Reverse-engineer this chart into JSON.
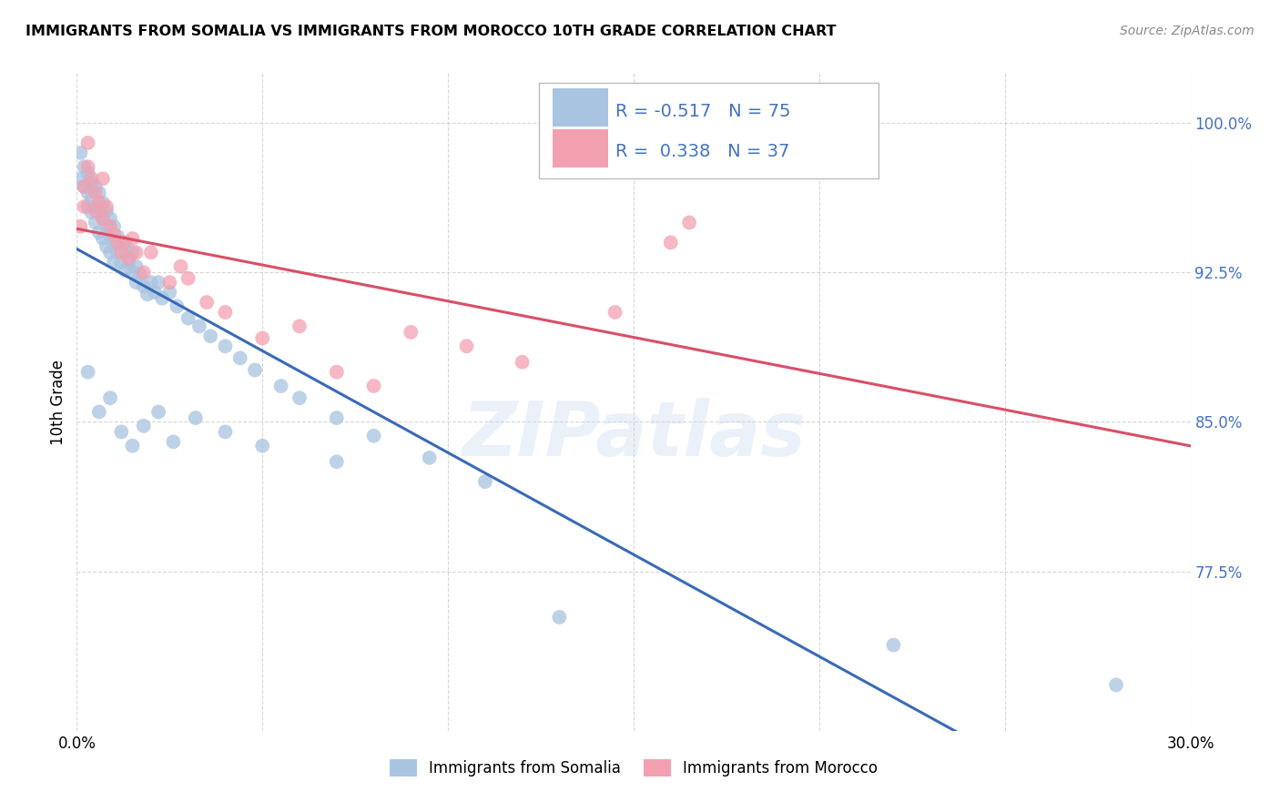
{
  "title": "IMMIGRANTS FROM SOMALIA VS IMMIGRANTS FROM MOROCCO 10TH GRADE CORRELATION CHART",
  "source": "Source: ZipAtlas.com",
  "ylabel": "10th Grade",
  "xmin": 0.0,
  "xmax": 0.3,
  "ymin": 0.695,
  "ymax": 1.025,
  "yticks": [
    0.775,
    0.85,
    0.925,
    1.0
  ],
  "ytick_labels": [
    "77.5%",
    "85.0%",
    "92.5%",
    "100.0%"
  ],
  "xticks": [
    0.0,
    0.05,
    0.1,
    0.15,
    0.2,
    0.25,
    0.3
  ],
  "xtick_labels": [
    "0.0%",
    "",
    "",
    "",
    "",
    "",
    "30.0%"
  ],
  "r_somalia": -0.517,
  "n_somalia": 75,
  "r_morocco": 0.338,
  "n_morocco": 37,
  "somalia_color": "#a8c4e0",
  "morocco_color": "#f2a0b0",
  "somalia_line_color": "#3a6ab8",
  "morocco_line_color": "#d94f68",
  "watermark": "ZIPatlas",
  "legend_label_somalia": "Immigrants from Somalia",
  "legend_label_morocco": "Immigrants from Morocco",
  "somalia_x": [
    0.001,
    0.001,
    0.002,
    0.002,
    0.003,
    0.003,
    0.003,
    0.004,
    0.004,
    0.004,
    0.005,
    0.005,
    0.005,
    0.006,
    0.006,
    0.006,
    0.007,
    0.007,
    0.007,
    0.008,
    0.008,
    0.008,
    0.009,
    0.009,
    0.009,
    0.01,
    0.01,
    0.01,
    0.011,
    0.011,
    0.012,
    0.012,
    0.013,
    0.013,
    0.014,
    0.015,
    0.015,
    0.016,
    0.016,
    0.017,
    0.018,
    0.019,
    0.02,
    0.021,
    0.022,
    0.023,
    0.025,
    0.027,
    0.03,
    0.033,
    0.036,
    0.04,
    0.044,
    0.048,
    0.055,
    0.06,
    0.07,
    0.08,
    0.095,
    0.11,
    0.003,
    0.006,
    0.009,
    0.012,
    0.015,
    0.018,
    0.022,
    0.026,
    0.032,
    0.04,
    0.05,
    0.07,
    0.13,
    0.22,
    0.28
  ],
  "somalia_y": [
    0.972,
    0.985,
    0.978,
    0.968,
    0.975,
    0.965,
    0.958,
    0.97,
    0.962,
    0.955,
    0.968,
    0.958,
    0.95,
    0.965,
    0.955,
    0.945,
    0.96,
    0.952,
    0.942,
    0.956,
    0.948,
    0.938,
    0.952,
    0.943,
    0.935,
    0.948,
    0.94,
    0.93,
    0.943,
    0.935,
    0.94,
    0.93,
    0.936,
    0.926,
    0.93,
    0.935,
    0.925,
    0.928,
    0.92,
    0.924,
    0.918,
    0.914,
    0.92,
    0.915,
    0.92,
    0.912,
    0.915,
    0.908,
    0.902,
    0.898,
    0.893,
    0.888,
    0.882,
    0.876,
    0.868,
    0.862,
    0.852,
    0.843,
    0.832,
    0.82,
    0.875,
    0.855,
    0.862,
    0.845,
    0.838,
    0.848,
    0.855,
    0.84,
    0.852,
    0.845,
    0.838,
    0.83,
    0.752,
    0.738,
    0.718
  ],
  "morocco_x": [
    0.001,
    0.002,
    0.002,
    0.003,
    0.003,
    0.004,
    0.005,
    0.005,
    0.006,
    0.007,
    0.007,
    0.008,
    0.009,
    0.01,
    0.011,
    0.012,
    0.013,
    0.014,
    0.015,
    0.016,
    0.018,
    0.02,
    0.025,
    0.028,
    0.03,
    0.035,
    0.04,
    0.05,
    0.06,
    0.07,
    0.08,
    0.09,
    0.105,
    0.12,
    0.145,
    0.165,
    0.16
  ],
  "morocco_y": [
    0.948,
    0.968,
    0.958,
    0.99,
    0.978,
    0.972,
    0.965,
    0.956,
    0.96,
    0.972,
    0.952,
    0.958,
    0.948,
    0.944,
    0.94,
    0.935,
    0.94,
    0.932,
    0.942,
    0.935,
    0.925,
    0.935,
    0.92,
    0.928,
    0.922,
    0.91,
    0.905,
    0.892,
    0.898,
    0.875,
    0.868,
    0.895,
    0.888,
    0.88,
    0.905,
    0.95,
    0.94
  ]
}
